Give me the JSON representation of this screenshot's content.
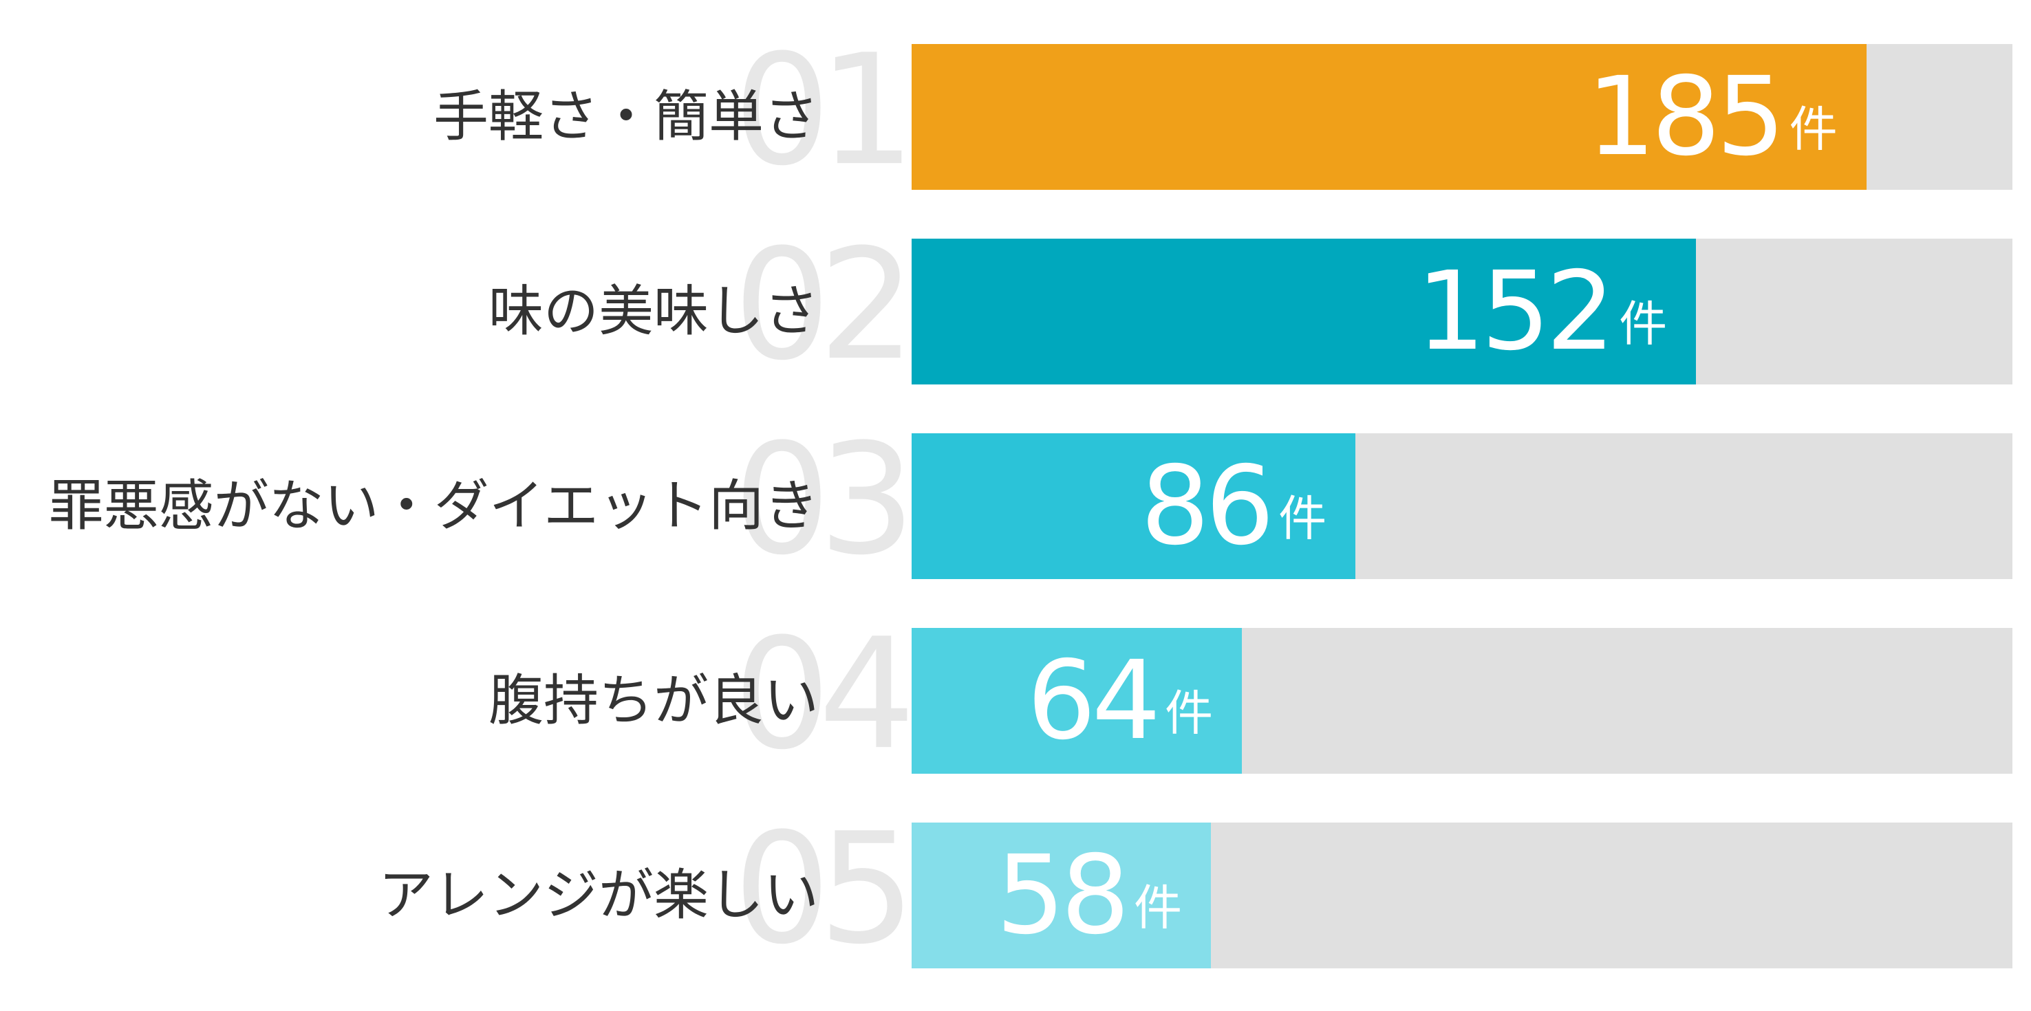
{
  "chart_data": {
    "type": "bar",
    "orientation": "horizontal",
    "title": "",
    "categories": [
      "手軽さ・簡単さ",
      "味の美味しさ",
      "罪悪感がない・ダイエット向き",
      "腹持ちが良い",
      "アレンジが楽しい"
    ],
    "values": [
      185,
      152,
      86,
      64,
      58
    ],
    "unit": "件",
    "rank_labels": [
      "01",
      "02",
      "03",
      "04",
      "05"
    ],
    "xlim": [
      0,
      213.3
    ],
    "grid": false,
    "legend": "none",
    "colors": {
      "bar_fills": [
        "#F0A019",
        "#00A8BD",
        "#2BC3D8",
        "#4FD1E1",
        "#85DEEA"
      ],
      "track": "#E0E0E0",
      "rank_number": "#E7E7E7",
      "category_label": "#333333",
      "value_text": "#FFFFFF",
      "background": "#FFFFFF"
    }
  },
  "rows": [
    {
      "rank": "01",
      "label": "手軽さ・簡単さ",
      "value": "185",
      "unit": "件"
    },
    {
      "rank": "02",
      "label": "味の美味しさ",
      "value": "152",
      "unit": "件"
    },
    {
      "rank": "03",
      "label": "罪悪感がない・ダイエット向き",
      "value": "86",
      "unit": "件"
    },
    {
      "rank": "04",
      "label": "腹持ちが良い",
      "value": "64",
      "unit": "件"
    },
    {
      "rank": "05",
      "label": "アレンジが楽しい",
      "value": "58",
      "unit": "件"
    }
  ]
}
